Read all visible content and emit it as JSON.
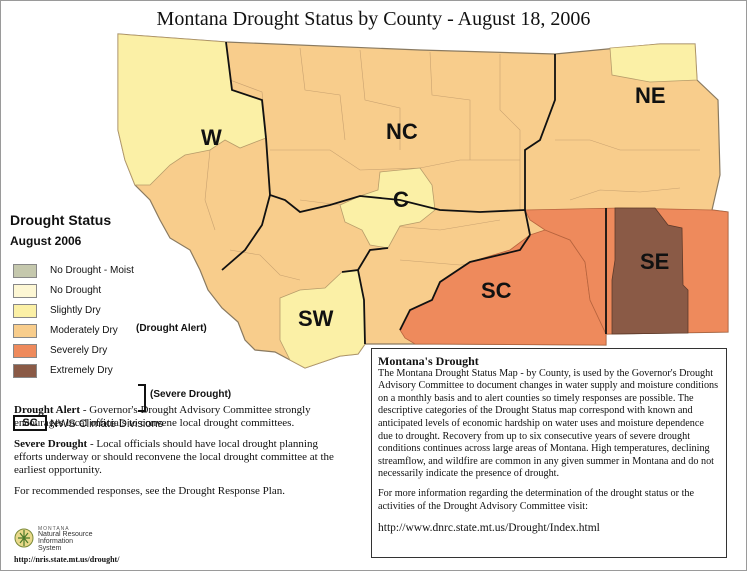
{
  "title": "Montana Drought Status by County - August 18, 2006",
  "map": {
    "regions": [
      {
        "code": "W",
        "status": "Slightly Dry"
      },
      {
        "code": "NC",
        "status": "Moderately Dry"
      },
      {
        "code": "NE",
        "status": "Moderately Dry"
      },
      {
        "code": "C",
        "status": "Slightly Dry"
      },
      {
        "code": "SW",
        "status": "Slightly Dry"
      },
      {
        "code": "SC",
        "status": "Severely Dry"
      },
      {
        "code": "SE",
        "status": "Extremely Dry"
      }
    ]
  },
  "legend": {
    "title": "Drought Status",
    "subtitle": "August 2006",
    "items": [
      {
        "label": "No Drought - Moist",
        "color": "#c5c8ad"
      },
      {
        "label": "No Drought",
        "color": "#fdf7d4"
      },
      {
        "label": "Slightly Dry",
        "color": "#fbf0a6"
      },
      {
        "label": "Moderately Dry",
        "color": "#f8cd8c"
      },
      {
        "label": "Severely Dry",
        "color": "#ee8a5c"
      },
      {
        "label": "Extremely Dry",
        "color": "#8a5a46"
      }
    ],
    "drought_alert_note": "(Drought Alert)",
    "severe_drought_note": "(Severe Drought)",
    "divisions_box": "SC",
    "divisions_label": "NWS Climate Divisions"
  },
  "definitions": {
    "alert_term": "Drought Alert",
    "alert_text": " - Governor's Drought Advisory Committee strongly encourages local officials to convene local drought committees.",
    "severe_term": "Severe Drought",
    "severe_text": " - Local officials should have local drought planning efforts underway or should reconvene the local drought committee at the earliest opportunity.",
    "recommend": "For recommended responses, see the Drought Response Plan."
  },
  "logo": {
    "text_small": "MONTANA",
    "text_line1": "Natural Resource",
    "text_line2": "Information",
    "text_line3": "System",
    "url": "http://nris.state.mt.us/drought/"
  },
  "info": {
    "heading": "Montana's Drought",
    "paragraph1": "The Montana Drought Status Map - by County, is used by the Governor's Drought Advisory Committee to document changes in water supply and moisture conditions on a monthly basis and to alert counties so timely responses are possible. The descriptive categories of the Drought Status map correspond with known and anticipated levels of economic hardship on water uses and moisture dependence due to drought. Recovery from up to six consecutive years of severe drought conditions continues across large areas of Montana. High temperatures, declining streamflow, and wildfire are common in any given summer in Montana and do not necessarily indicate the presence of drought.",
    "paragraph2": "For more information regarding the determination of the drought status or the activities of the Drought Advisory Committee visit:",
    "url": "http://www.dnrc.state.mt.us/Drought/Index.html"
  }
}
